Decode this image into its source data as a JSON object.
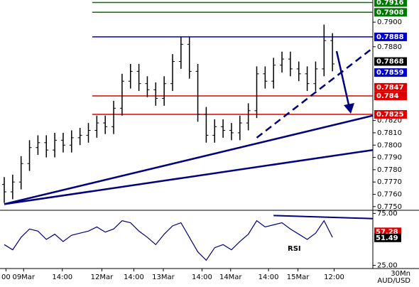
{
  "chart_data": {
    "type": "ohlc",
    "symbol": "AUD/USD",
    "timeframe": "30Mn",
    "open": [
      0.7768,
      0.7762,
      0.777,
      0.7785,
      0.7798,
      0.7802,
      0.7796,
      0.7804,
      0.78,
      0.7806,
      0.7808,
      0.7812,
      0.7818,
      0.7815,
      0.783,
      0.7852,
      0.786,
      0.785,
      0.7845,
      0.7838,
      0.785,
      0.7868,
      0.7882,
      0.786,
      0.7825,
      0.7808,
      0.7815,
      0.7812,
      0.781,
      0.7818,
      0.7828,
      0.7858,
      0.7852,
      0.7865,
      0.787,
      0.7862,
      0.7858,
      0.785,
      0.7862,
      0.7885
    ],
    "high": [
      0.7774,
      0.7776,
      0.7791,
      0.7804,
      0.7808,
      0.7808,
      0.781,
      0.781,
      0.7812,
      0.7814,
      0.7818,
      0.7824,
      0.7824,
      0.7836,
      0.7858,
      0.7866,
      0.7866,
      0.7856,
      0.7851,
      0.7856,
      0.7874,
      0.7888,
      0.7888,
      0.7866,
      0.7831,
      0.7821,
      0.7821,
      0.7818,
      0.7824,
      0.7834,
      0.7864,
      0.7864,
      0.7871,
      0.7876,
      0.7876,
      0.7868,
      0.7864,
      0.7868,
      0.7898,
      0.7891
    ],
    "low": [
      0.7753,
      0.7756,
      0.7764,
      0.7779,
      0.7792,
      0.779,
      0.779,
      0.7794,
      0.7794,
      0.78,
      0.7802,
      0.7806,
      0.7809,
      0.7809,
      0.7824,
      0.7846,
      0.7844,
      0.7839,
      0.7832,
      0.7832,
      0.7844,
      0.7862,
      0.7854,
      0.7819,
      0.7802,
      0.7802,
      0.7806,
      0.7804,
      0.7804,
      0.7812,
      0.7822,
      0.7846,
      0.7846,
      0.7859,
      0.7856,
      0.7852,
      0.7844,
      0.7844,
      0.7856,
      0.786
    ],
    "close": [
      0.7762,
      0.777,
      0.7785,
      0.7798,
      0.7802,
      0.7796,
      0.7804,
      0.78,
      0.7806,
      0.7808,
      0.7812,
      0.7818,
      0.7815,
      0.783,
      0.7852,
      0.786,
      0.785,
      0.7845,
      0.7838,
      0.785,
      0.7868,
      0.7882,
      0.786,
      0.7825,
      0.7808,
      0.7815,
      0.7812,
      0.781,
      0.7818,
      0.7828,
      0.7858,
      0.7852,
      0.7865,
      0.787,
      0.7862,
      0.7858,
      0.785,
      0.7862,
      0.7885,
      0.7866
    ],
    "ylim": [
      0.7747,
      0.7918
    ],
    "yticks": [
      {
        "value": 0.775,
        "label": "0.7750"
      },
      {
        "value": 0.776,
        "label": "0.7760"
      },
      {
        "value": 0.777,
        "label": "0.7770"
      },
      {
        "value": 0.778,
        "label": "0.7780"
      },
      {
        "value": 0.779,
        "label": "0.7790"
      },
      {
        "value": 0.78,
        "label": "0.7800"
      },
      {
        "value": 0.781,
        "label": "0.7810"
      },
      {
        "value": 0.782,
        "label": "0.7820"
      },
      {
        "value": 0.788,
        "label": "0.7880"
      },
      {
        "value": 0.79,
        "label": "0.7900"
      }
    ],
    "levels": [
      {
        "value": 0.7916,
        "color": "#007700",
        "line": true
      },
      {
        "value": 0.7908,
        "color": "#007700",
        "line": true
      },
      {
        "value": 0.7888,
        "color": "#0000cc",
        "line": true
      },
      {
        "value": 0.7868,
        "color": "#000000",
        "line": false
      },
      {
        "value": 0.7859,
        "color": "#0000cc",
        "line": false
      },
      {
        "value": 0.7847,
        "color": "#dd0000",
        "line": false
      },
      {
        "value": 0.784,
        "color": "#dd0000",
        "line": true
      },
      {
        "value": 0.7825,
        "color": "#dd0000",
        "line": true
      }
    ],
    "trendlines": [
      {
        "x": [
          0,
          43.8
        ],
        "y": [
          0.7752,
          0.7824
        ],
        "dashed": false
      },
      {
        "x": [
          0,
          43.8
        ],
        "y": [
          0.7752,
          0.7796
        ],
        "dashed": false
      },
      {
        "x": [
          30,
          43.8
        ],
        "y": [
          0.7806,
          0.7879
        ],
        "dashed": true
      }
    ],
    "xlabels": [
      {
        "index": 0.2,
        "label": "00"
      },
      {
        "index": 2.3,
        "label": "09Mar"
      },
      {
        "index": 6.9,
        "label": "14:00"
      },
      {
        "index": 11.6,
        "label": "12Mar"
      },
      {
        "index": 15.4,
        "label": "14:00"
      },
      {
        "index": 18.9,
        "label": "13Mar"
      },
      {
        "index": 23.5,
        "label": "14:00"
      },
      {
        "index": 26.9,
        "label": "14Mar"
      },
      {
        "index": 31.4,
        "label": "14:00"
      },
      {
        "index": 34.9,
        "label": "15Mar"
      },
      {
        "index": 39.2,
        "label": "12:00"
      }
    ],
    "rsi": {
      "name": "RSI",
      "values": [
        45,
        40,
        52,
        60,
        58,
        50,
        55,
        48,
        54,
        56,
        58,
        62,
        57,
        60,
        68,
        66,
        58,
        52,
        45,
        55,
        63,
        66,
        52,
        38,
        30,
        42,
        45,
        40,
        48,
        55,
        68,
        62,
        64,
        66,
        60,
        55,
        50,
        56,
        68,
        52
      ],
      "ylim": [
        22,
        78
      ],
      "yticks": [
        {
          "value": 75,
          "label": "75.00"
        },
        {
          "value": 25,
          "label": "25.00"
        }
      ],
      "levels": [
        {
          "value": 57.28,
          "label": "57.28",
          "color": "#dd0000"
        },
        {
          "value": 51.49,
          "label": "51.49",
          "color": "#000000"
        }
      ],
      "trendline": {
        "x": [
          32,
          43.8
        ],
        "y": [
          73,
          70
        ]
      }
    }
  }
}
